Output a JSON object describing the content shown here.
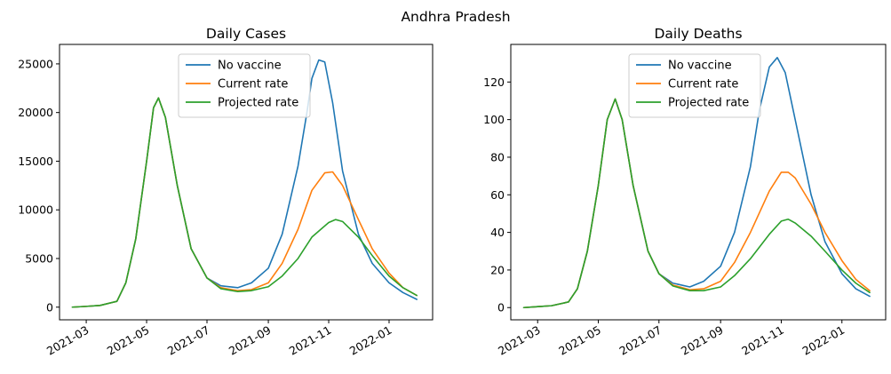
{
  "suptitle": "Andhra Pradesh",
  "chart_data": [
    {
      "type": "line",
      "title": "Daily Cases",
      "xlabel": "",
      "ylabel": "",
      "x_ticks": [
        "2021-03",
        "2021-05",
        "2021-07",
        "2021-09",
        "2021-11",
        "2022-01"
      ],
      "y_ticks": [
        0,
        5000,
        10000,
        15000,
        20000,
        25000
      ],
      "x_range": [
        "2021-02-02",
        "2022-02-14"
      ],
      "ylim": [
        -1300,
        27000
      ],
      "legend": "upper center",
      "grid": false,
      "series": [
        {
          "name": "No vaccine",
          "color": "#1f77b4",
          "x": [
            "2021-02-15",
            "2021-03-01",
            "2021-03-15",
            "2021-04-01",
            "2021-04-10",
            "2021-04-20",
            "2021-05-01",
            "2021-05-08",
            "2021-05-13",
            "2021-05-20",
            "2021-06-01",
            "2021-06-15",
            "2021-07-01",
            "2021-07-15",
            "2021-08-01",
            "2021-08-15",
            "2021-09-01",
            "2021-09-15",
            "2021-10-01",
            "2021-10-10",
            "2021-10-15",
            "2021-10-22",
            "2021-10-28",
            "2021-11-05",
            "2021-11-15",
            "2021-12-01",
            "2021-12-15",
            "2022-01-01",
            "2022-01-15",
            "2022-01-29"
          ],
          "y": [
            0,
            80,
            180,
            600,
            2500,
            7000,
            15000,
            20500,
            21500,
            19500,
            12500,
            6000,
            3000,
            2200,
            2000,
            2500,
            4000,
            7500,
            14500,
            20000,
            23500,
            25400,
            25200,
            21000,
            14000,
            7500,
            4500,
            2500,
            1500,
            800
          ]
        },
        {
          "name": "Current rate",
          "color": "#ff7f0e",
          "x": [
            "2021-02-15",
            "2021-03-01",
            "2021-03-15",
            "2021-04-01",
            "2021-04-10",
            "2021-04-20",
            "2021-05-01",
            "2021-05-08",
            "2021-05-13",
            "2021-05-20",
            "2021-06-01",
            "2021-06-15",
            "2021-07-01",
            "2021-07-15",
            "2021-08-01",
            "2021-08-15",
            "2021-09-01",
            "2021-09-15",
            "2021-10-01",
            "2021-10-15",
            "2021-10-28",
            "2021-11-05",
            "2021-11-15",
            "2021-12-01",
            "2021-12-15",
            "2022-01-01",
            "2022-01-15",
            "2022-01-29"
          ],
          "y": [
            0,
            80,
            180,
            600,
            2500,
            7000,
            15000,
            20500,
            21500,
            19500,
            12500,
            6000,
            3000,
            2000,
            1700,
            1800,
            2500,
            4500,
            8000,
            12000,
            13800,
            13900,
            12500,
            9000,
            6000,
            3500,
            2000,
            1200
          ]
        },
        {
          "name": "Projected rate",
          "color": "#2ca02c",
          "x": [
            "2021-02-15",
            "2021-03-01",
            "2021-03-15",
            "2021-04-01",
            "2021-04-10",
            "2021-04-20",
            "2021-05-01",
            "2021-05-08",
            "2021-05-13",
            "2021-05-20",
            "2021-06-01",
            "2021-06-15",
            "2021-07-01",
            "2021-07-15",
            "2021-08-01",
            "2021-08-15",
            "2021-09-01",
            "2021-09-15",
            "2021-10-01",
            "2021-10-15",
            "2021-11-01",
            "2021-11-08",
            "2021-11-15",
            "2021-12-01",
            "2021-12-15",
            "2022-01-01",
            "2022-01-15",
            "2022-01-29"
          ],
          "y": [
            0,
            80,
            180,
            600,
            2500,
            7000,
            15000,
            20500,
            21500,
            19500,
            12500,
            6000,
            3000,
            1900,
            1600,
            1700,
            2100,
            3200,
            5000,
            7200,
            8700,
            9000,
            8800,
            7200,
            5300,
            3200,
            2000,
            1200
          ]
        }
      ]
    },
    {
      "type": "line",
      "title": "Daily Deaths",
      "xlabel": "",
      "ylabel": "",
      "x_ticks": [
        "2021-03",
        "2021-05",
        "2021-07",
        "2021-09",
        "2021-11",
        "2022-01"
      ],
      "y_ticks": [
        0,
        20,
        40,
        60,
        80,
        100,
        120
      ],
      "x_range": [
        "2021-02-02",
        "2022-02-14"
      ],
      "ylim": [
        -6.5,
        140
      ],
      "legend": "upper center",
      "grid": false,
      "series": [
        {
          "name": "No vaccine",
          "color": "#1f77b4",
          "x": [
            "2021-02-15",
            "2021-03-01",
            "2021-03-15",
            "2021-04-01",
            "2021-04-10",
            "2021-04-20",
            "2021-05-01",
            "2021-05-10",
            "2021-05-18",
            "2021-05-25",
            "2021-06-05",
            "2021-06-20",
            "2021-07-01",
            "2021-07-15",
            "2021-08-01",
            "2021-08-15",
            "2021-09-01",
            "2021-09-15",
            "2021-10-01",
            "2021-10-10",
            "2021-10-20",
            "2021-10-28",
            "2021-11-05",
            "2021-11-15",
            "2021-12-01",
            "2021-12-15",
            "2022-01-01",
            "2022-01-15",
            "2022-01-29"
          ],
          "y": [
            0,
            0.5,
            1,
            3,
            10,
            30,
            65,
            100,
            111,
            100,
            65,
            30,
            18,
            13,
            11,
            14,
            22,
            40,
            75,
            105,
            128,
            133,
            125,
            100,
            60,
            35,
            18,
            10,
            6
          ]
        },
        {
          "name": "Current rate",
          "color": "#ff7f0e",
          "x": [
            "2021-02-15",
            "2021-03-01",
            "2021-03-15",
            "2021-04-01",
            "2021-04-10",
            "2021-04-20",
            "2021-05-01",
            "2021-05-10",
            "2021-05-18",
            "2021-05-25",
            "2021-06-05",
            "2021-06-20",
            "2021-07-01",
            "2021-07-15",
            "2021-08-01",
            "2021-08-15",
            "2021-09-01",
            "2021-09-15",
            "2021-10-01",
            "2021-10-20",
            "2021-11-01",
            "2021-11-08",
            "2021-11-15",
            "2021-12-01",
            "2021-12-15",
            "2022-01-01",
            "2022-01-15",
            "2022-01-29"
          ],
          "y": [
            0,
            0.5,
            1,
            3,
            10,
            30,
            65,
            100,
            111,
            100,
            65,
            30,
            18,
            12,
            9.5,
            10,
            14,
            24,
            40,
            62,
            72,
            72,
            69,
            55,
            40,
            25,
            15,
            9
          ]
        },
        {
          "name": "Projected rate",
          "color": "#2ca02c",
          "x": [
            "2021-02-15",
            "2021-03-01",
            "2021-03-15",
            "2021-04-01",
            "2021-04-10",
            "2021-04-20",
            "2021-05-01",
            "2021-05-10",
            "2021-05-18",
            "2021-05-25",
            "2021-06-05",
            "2021-06-20",
            "2021-07-01",
            "2021-07-15",
            "2021-08-01",
            "2021-08-15",
            "2021-09-01",
            "2021-09-15",
            "2021-10-01",
            "2021-10-20",
            "2021-11-01",
            "2021-11-08",
            "2021-11-15",
            "2021-12-01",
            "2021-12-15",
            "2022-01-01",
            "2022-01-15",
            "2022-01-29"
          ],
          "y": [
            0,
            0.5,
            1,
            3,
            10,
            30,
            65,
            100,
            111,
            100,
            65,
            30,
            18,
            11.5,
            9,
            9,
            11,
            17,
            26,
            39,
            46,
            47,
            45,
            38,
            30,
            20,
            13,
            8
          ]
        }
      ]
    }
  ]
}
